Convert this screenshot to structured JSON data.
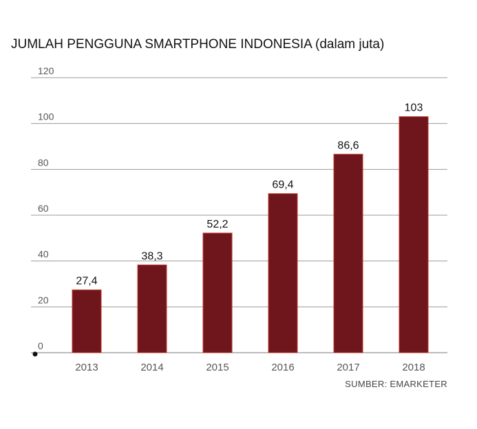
{
  "chart_data": {
    "type": "bar",
    "title": "JUMLAH PENGGUNA SMARTPHONE INDONESIA (dalam juta)",
    "source": "SUMBER: EMARKETER",
    "categories": [
      "2013",
      "2014",
      "2015",
      "2016",
      "2017",
      "2018"
    ],
    "values": [
      27.4,
      38.3,
      52.2,
      69.4,
      86.6,
      103
    ],
    "value_labels": [
      "27,4",
      "38,3",
      "52,2",
      "69,4",
      "86,6",
      "103"
    ],
    "yticks": [
      0,
      20,
      40,
      60,
      80,
      100,
      120
    ],
    "ylim": [
      0,
      120
    ],
    "grid": true,
    "bar_color": "#6e161c",
    "bar_edge_color": "#c0392b"
  }
}
